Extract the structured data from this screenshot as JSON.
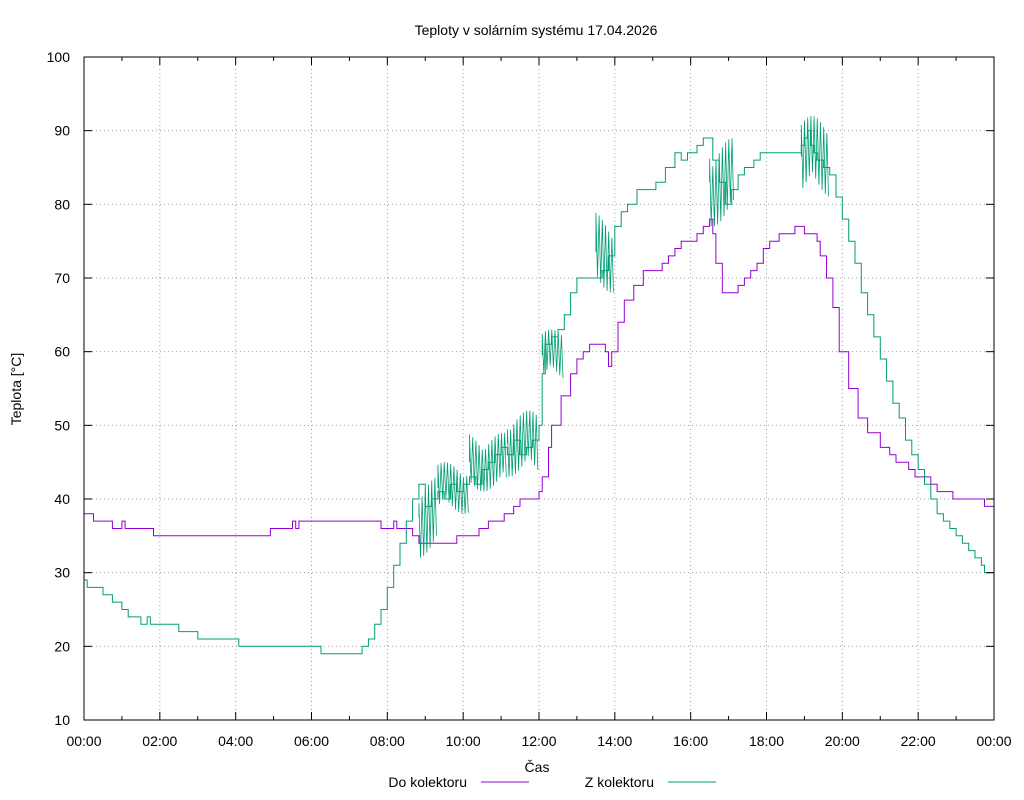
{
  "chart_data": {
    "type": "line",
    "title": "Teploty v solárním systému 17.04.2026",
    "xlabel": "Čas",
    "ylabel": "Teplota [°C]",
    "xlim": [
      "00:00",
      "24:00"
    ],
    "ylim": [
      10,
      100
    ],
    "x_ticks": [
      "00:00",
      "02:00",
      "04:00",
      "06:00",
      "08:00",
      "10:00",
      "12:00",
      "14:00",
      "16:00",
      "18:00",
      "20:00",
      "22:00",
      "00:00"
    ],
    "y_ticks": [
      10,
      20,
      30,
      40,
      50,
      60,
      70,
      80,
      90,
      100
    ],
    "grid": true,
    "legend_position": "bottom",
    "series": [
      {
        "name": "Do kolektoru",
        "color": "#9400d3",
        "points": [
          [
            "00:00",
            38
          ],
          [
            "00:15",
            38
          ],
          [
            "00:15",
            37
          ],
          [
            "00:45",
            37
          ],
          [
            "00:45",
            36
          ],
          [
            "01:00",
            36
          ],
          [
            "01:00",
            37
          ],
          [
            "01:05",
            36
          ],
          [
            "01:50",
            36
          ],
          [
            "01:50",
            35
          ],
          [
            "04:55",
            35
          ],
          [
            "04:55",
            36
          ],
          [
            "05:30",
            36
          ],
          [
            "05:30",
            37
          ],
          [
            "05:35",
            36
          ],
          [
            "05:40",
            37
          ],
          [
            "07:50",
            37
          ],
          [
            "07:50",
            36
          ],
          [
            "08:10",
            36
          ],
          [
            "08:10",
            37
          ],
          [
            "08:15",
            36
          ],
          [
            "08:40",
            36
          ],
          [
            "08:40",
            35
          ],
          [
            "08:50",
            35
          ],
          [
            "08:50",
            34
          ],
          [
            "09:50",
            34
          ],
          [
            "09:50",
            35
          ],
          [
            "10:25",
            35
          ],
          [
            "10:25",
            36
          ],
          [
            "10:40",
            36
          ],
          [
            "10:40",
            37
          ],
          [
            "11:05",
            37
          ],
          [
            "11:05",
            38
          ],
          [
            "11:20",
            38
          ],
          [
            "11:20",
            39
          ],
          [
            "11:30",
            39
          ],
          [
            "11:30",
            40
          ],
          [
            "11:55",
            40
          ],
          [
            "12:00",
            41
          ],
          [
            "12:05",
            43
          ],
          [
            "12:15",
            47
          ],
          [
            "12:20",
            50
          ],
          [
            "12:35",
            54
          ],
          [
            "12:50",
            57
          ],
          [
            "13:00",
            59
          ],
          [
            "13:10",
            60
          ],
          [
            "13:20",
            61
          ],
          [
            "13:40",
            61
          ],
          [
            "13:45",
            60
          ],
          [
            "13:50",
            58
          ],
          [
            "13:55",
            60
          ],
          [
            "14:05",
            64
          ],
          [
            "14:15",
            67
          ],
          [
            "14:30",
            69
          ],
          [
            "14:45",
            71
          ],
          [
            "15:00",
            71
          ],
          [
            "15:15",
            72
          ],
          [
            "15:25",
            73
          ],
          [
            "15:35",
            74
          ],
          [
            "15:45",
            75
          ],
          [
            "16:05",
            75
          ],
          [
            "16:10",
            76
          ],
          [
            "16:20",
            77
          ],
          [
            "16:30",
            78
          ],
          [
            "16:35",
            76
          ],
          [
            "16:40",
            72
          ],
          [
            "16:50",
            68
          ],
          [
            "17:10",
            68
          ],
          [
            "17:15",
            69
          ],
          [
            "17:25",
            70
          ],
          [
            "17:35",
            71
          ],
          [
            "17:45",
            72
          ],
          [
            "17:55",
            74
          ],
          [
            "18:05",
            75
          ],
          [
            "18:20",
            76
          ],
          [
            "18:40",
            76
          ],
          [
            "18:45",
            77
          ],
          [
            "18:55",
            77
          ],
          [
            "19:00",
            76
          ],
          [
            "19:15",
            76
          ],
          [
            "19:20",
            75
          ],
          [
            "19:25",
            73
          ],
          [
            "19:35",
            70
          ],
          [
            "19:45",
            66
          ],
          [
            "19:55",
            60
          ],
          [
            "20:10",
            55
          ],
          [
            "20:25",
            51
          ],
          [
            "20:40",
            49
          ],
          [
            "21:00",
            47
          ],
          [
            "21:15",
            46
          ],
          [
            "21:25",
            45
          ],
          [
            "21:35",
            45
          ],
          [
            "21:45",
            44
          ],
          [
            "21:55",
            43
          ],
          [
            "22:15",
            43
          ],
          [
            "22:20",
            42
          ],
          [
            "22:30",
            41
          ],
          [
            "22:45",
            41
          ],
          [
            "22:55",
            40
          ],
          [
            "23:40",
            40
          ],
          [
            "23:45",
            39
          ],
          [
            "24:00",
            39
          ]
        ]
      },
      {
        "name": "Z kolektoru",
        "color": "#009e73",
        "points": [
          [
            "00:00",
            29
          ],
          [
            "00:05",
            28
          ],
          [
            "00:25",
            28
          ],
          [
            "00:30",
            27
          ],
          [
            "00:40",
            27
          ],
          [
            "00:45",
            26
          ],
          [
            "00:55",
            26
          ],
          [
            "01:00",
            25
          ],
          [
            "01:05",
            25
          ],
          [
            "01:10",
            24
          ],
          [
            "01:25",
            24
          ],
          [
            "01:30",
            23
          ],
          [
            "01:40",
            24
          ],
          [
            "01:45",
            23
          ],
          [
            "02:30",
            23
          ],
          [
            "02:30",
            22
          ],
          [
            "03:00",
            22
          ],
          [
            "03:00",
            21
          ],
          [
            "04:05",
            21
          ],
          [
            "04:05",
            20
          ],
          [
            "06:15",
            20
          ],
          [
            "06:15",
            19
          ],
          [
            "07:15",
            19
          ],
          [
            "07:20",
            20
          ],
          [
            "07:30",
            21
          ],
          [
            "07:40",
            23
          ],
          [
            "07:50",
            25
          ],
          [
            "08:00",
            28
          ],
          [
            "08:10",
            31
          ],
          [
            "08:20",
            34
          ],
          [
            "08:30",
            37
          ],
          [
            "08:40",
            40
          ],
          [
            "08:50",
            42
          ],
          [
            "09:00",
            39
          ],
          [
            "09:10",
            40
          ],
          [
            "09:20",
            41
          ],
          [
            "09:30",
            40
          ],
          [
            "09:40",
            42
          ],
          [
            "09:50",
            41
          ],
          [
            "10:00",
            42
          ],
          [
            "10:10",
            43
          ],
          [
            "10:20",
            42
          ],
          [
            "10:30",
            44
          ],
          [
            "10:40",
            45
          ],
          [
            "10:50",
            46
          ],
          [
            "11:00",
            47
          ],
          [
            "11:10",
            46
          ],
          [
            "11:20",
            48
          ],
          [
            "11:30",
            46
          ],
          [
            "11:40",
            47
          ],
          [
            "11:50",
            48
          ],
          [
            "12:00",
            50
          ],
          [
            "12:05",
            57
          ],
          [
            "12:10",
            61
          ],
          [
            "12:20",
            62
          ],
          [
            "12:30",
            63
          ],
          [
            "12:40",
            65
          ],
          [
            "12:50",
            68
          ],
          [
            "13:00",
            70
          ],
          [
            "13:30",
            70
          ],
          [
            "13:40",
            71
          ],
          [
            "13:50",
            73
          ],
          [
            "14:00",
            77
          ],
          [
            "14:10",
            79
          ],
          [
            "14:20",
            80
          ],
          [
            "14:35",
            82
          ],
          [
            "14:55",
            82
          ],
          [
            "15:05",
            83
          ],
          [
            "15:20",
            85
          ],
          [
            "15:35",
            87
          ],
          [
            "15:45",
            86
          ],
          [
            "15:55",
            87
          ],
          [
            "16:10",
            88
          ],
          [
            "16:20",
            89
          ],
          [
            "16:25",
            89
          ],
          [
            "16:35",
            86
          ],
          [
            "16:45",
            83
          ],
          [
            "16:55",
            80
          ],
          [
            "17:05",
            82
          ],
          [
            "17:15",
            84
          ],
          [
            "17:25",
            85
          ],
          [
            "17:40",
            86
          ],
          [
            "17:50",
            87
          ],
          [
            "18:45",
            87
          ],
          [
            "18:55",
            88
          ],
          [
            "19:00",
            89
          ],
          [
            "19:05",
            90
          ],
          [
            "19:10",
            88
          ],
          [
            "19:15",
            87
          ],
          [
            "19:20",
            86
          ],
          [
            "19:30",
            85
          ],
          [
            "19:40",
            84
          ],
          [
            "19:50",
            81
          ],
          [
            "20:00",
            78
          ],
          [
            "20:10",
            75
          ],
          [
            "20:20",
            72
          ],
          [
            "20:30",
            68
          ],
          [
            "20:40",
            65
          ],
          [
            "20:50",
            62
          ],
          [
            "21:00",
            59
          ],
          [
            "21:10",
            56
          ],
          [
            "21:20",
            53
          ],
          [
            "21:30",
            51
          ],
          [
            "21:40",
            48
          ],
          [
            "21:50",
            46
          ],
          [
            "22:00",
            44
          ],
          [
            "22:10",
            42
          ],
          [
            "22:20",
            40
          ],
          [
            "22:30",
            38
          ],
          [
            "22:40",
            37
          ],
          [
            "22:50",
            36
          ],
          [
            "23:00",
            35
          ],
          [
            "23:10",
            34
          ],
          [
            "23:20",
            33
          ],
          [
            "23:30",
            32
          ],
          [
            "23:40",
            31
          ],
          [
            "23:45",
            30
          ],
          [
            "24:00",
            30
          ]
        ],
        "noise_bands": [
          [
            "08:50",
            "09:20",
            32,
            43
          ],
          [
            "09:20",
            "10:10",
            38,
            45
          ],
          [
            "10:10",
            "11:10",
            41,
            49
          ],
          [
            "11:10",
            "12:00",
            43,
            52
          ],
          [
            "12:05",
            "12:40",
            56,
            63
          ],
          [
            "13:30",
            "14:00",
            68,
            79
          ],
          [
            "16:30",
            "17:10",
            77,
            89
          ],
          [
            "18:55",
            "19:40",
            81,
            92
          ]
        ]
      }
    ]
  }
}
